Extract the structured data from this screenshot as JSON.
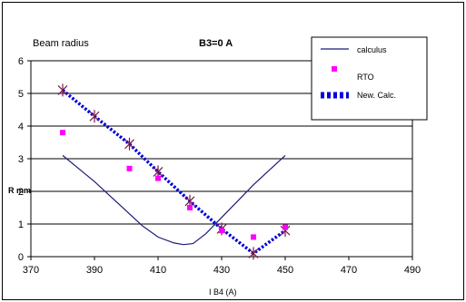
{
  "chart_data": {
    "type": "line",
    "title": "Beam radius",
    "subtitle": "B3=0 A",
    "xlabel": "I B4 (A)",
    "ylabel": "R mm",
    "xlim": [
      370,
      490
    ],
    "ylim": [
      0,
      6
    ],
    "xticks": [
      370,
      390,
      410,
      430,
      450,
      470,
      490
    ],
    "yticks": [
      0,
      1,
      2,
      3,
      4,
      5,
      6
    ],
    "grid": "horizontal",
    "legend_position": "top-right",
    "colors": {
      "calculus": "#1a1a7a",
      "rto": "#ff00ff",
      "new_calc": "#0000dd",
      "new_calc_marker": "#7a1a4a",
      "subtitle": "#ff0000"
    },
    "series": [
      {
        "name": "calculus",
        "style": "line",
        "x": [
          380,
          385,
          390,
          395,
          400,
          405,
          410,
          415,
          418,
          421,
          425,
          430,
          435,
          440,
          445,
          450
        ],
        "y": [
          3.1,
          2.7,
          2.3,
          1.85,
          1.4,
          0.95,
          0.6,
          0.42,
          0.37,
          0.4,
          0.7,
          1.2,
          1.7,
          2.2,
          2.65,
          3.1
        ]
      },
      {
        "name": "RTO",
        "style": "markers",
        "x": [
          380,
          401,
          410,
          420,
          430,
          440,
          450
        ],
        "y": [
          3.8,
          2.7,
          2.4,
          1.5,
          0.8,
          0.6,
          0.9
        ]
      },
      {
        "name": "New. Calc.",
        "style": "dotted-markers",
        "x": [
          380,
          390,
          401,
          410,
          420,
          430,
          440,
          450
        ],
        "y": [
          5.1,
          4.3,
          3.45,
          2.6,
          1.7,
          0.85,
          0.1,
          0.8
        ]
      }
    ]
  }
}
